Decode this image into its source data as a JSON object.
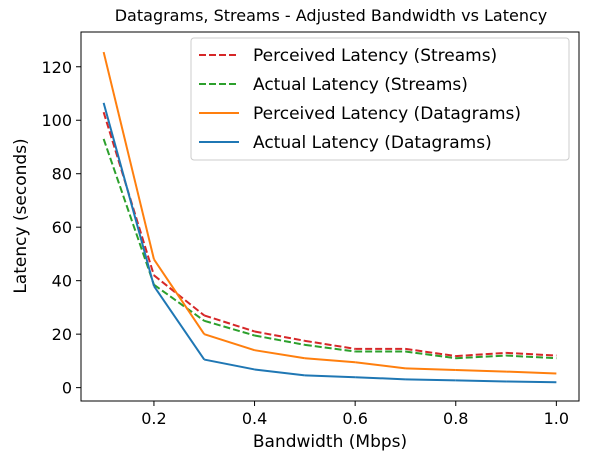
{
  "chart_data": {
    "type": "line",
    "title": "Datagrams, Streams - Adjusted Bandwidth vs Latency",
    "xlabel": "Bandwidth (Mbps)",
    "ylabel": "Latency (seconds)",
    "xlim": [
      0.055,
      1.045
    ],
    "ylim": [
      -5,
      133
    ],
    "xticks": [
      0.2,
      0.4,
      0.6,
      0.8,
      1.0
    ],
    "xtick_labels": [
      "0.2",
      "0.4",
      "0.6",
      "0.8",
      "1.0"
    ],
    "yticks": [
      0,
      20,
      40,
      60,
      80,
      100,
      120
    ],
    "ytick_labels": [
      "0",
      "20",
      "40",
      "60",
      "80",
      "100",
      "120"
    ],
    "grid": false,
    "legend_position": "top-right",
    "x": [
      0.1,
      0.2,
      0.3,
      0.4,
      0.5,
      0.6,
      0.7,
      0.8,
      0.9,
      1.0
    ],
    "series": [
      {
        "name": "Perceived Latency (Streams)",
        "color": "#d62728",
        "style": "dashed",
        "values": [
          103,
          42,
          27,
          21,
          17.5,
          14.5,
          14.5,
          11.8,
          13,
          12
        ]
      },
      {
        "name": "Actual Latency (Streams)",
        "color": "#2ca02c",
        "style": "dashed",
        "values": [
          93,
          38.5,
          25,
          19.5,
          16,
          13.5,
          13.5,
          11,
          12,
          11
        ]
      },
      {
        "name": "Perceived Latency (Datagrams)",
        "color": "#ff7f0e",
        "style": "solid",
        "values": [
          125.5,
          48,
          20,
          14,
          11,
          9.5,
          7.2,
          6.6,
          6,
          5.3
        ]
      },
      {
        "name": "Actual Latency (Datagrams)",
        "color": "#1f77b4",
        "style": "solid",
        "values": [
          106.5,
          38,
          10.5,
          6.8,
          4.6,
          3.9,
          3.1,
          2.7,
          2.3,
          2
        ]
      }
    ]
  }
}
